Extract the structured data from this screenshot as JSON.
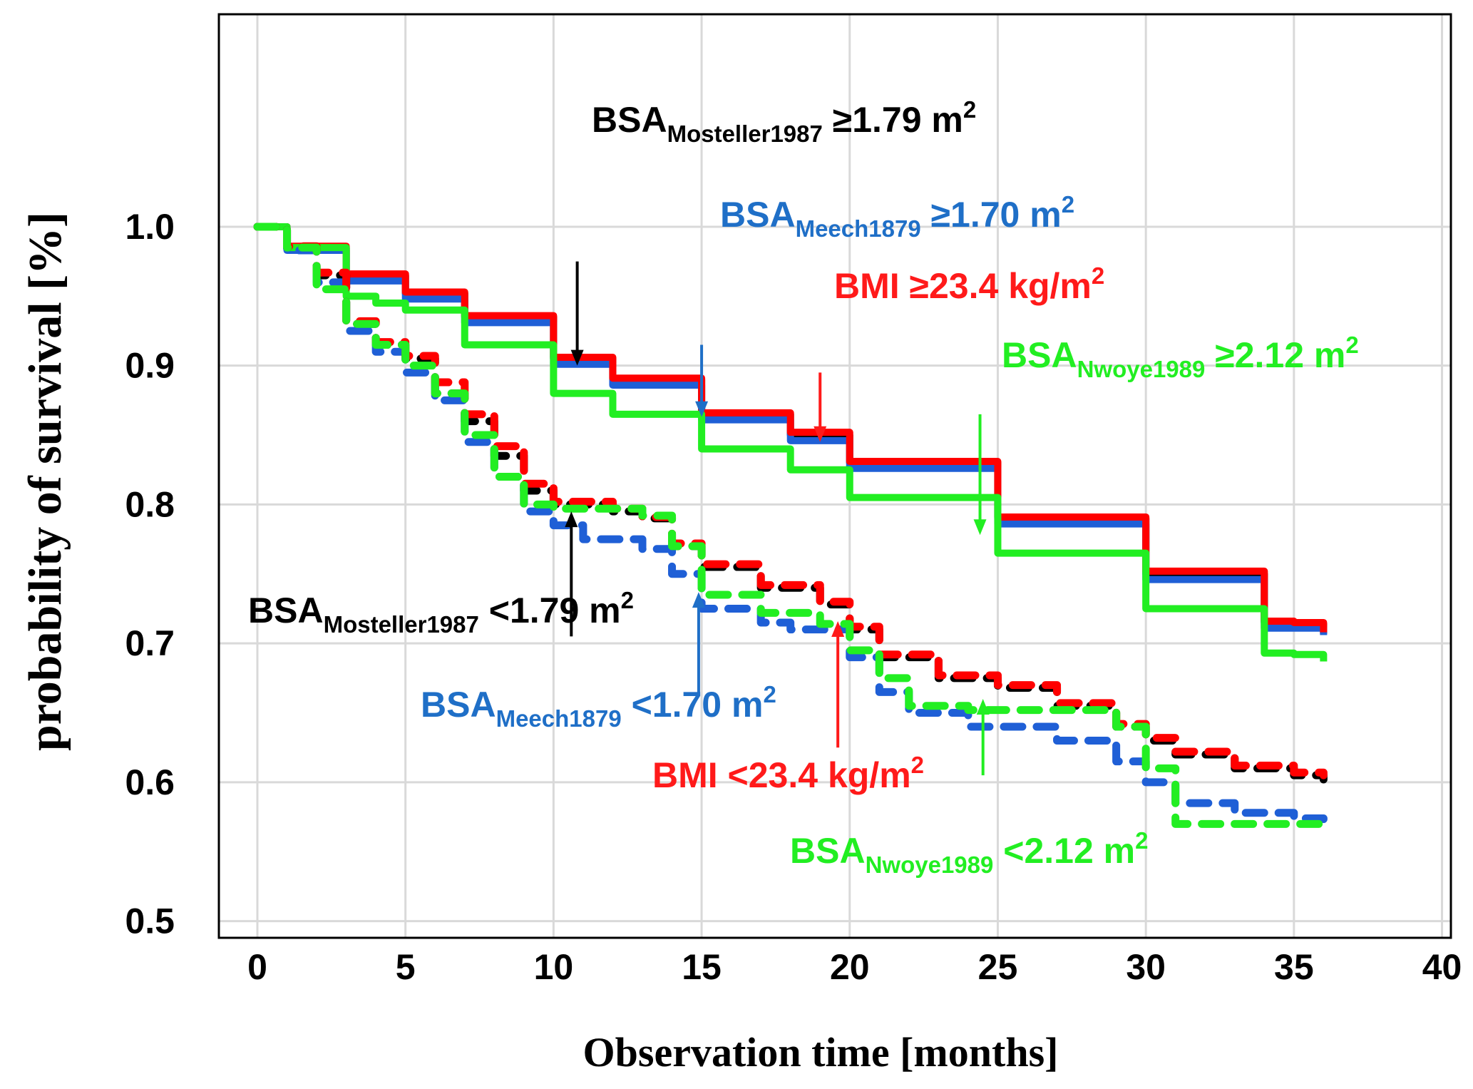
{
  "chart_data": {
    "type": "line",
    "title": "",
    "xlabel": "Observation time [months]",
    "ylabel": "probability of survival [%]",
    "xlim": [
      -1.3,
      40.3
    ],
    "ylim": [
      0.488,
      1.153
    ],
    "xticks": [
      0,
      5,
      10,
      15,
      20,
      25,
      30,
      35,
      40
    ],
    "yticks": [
      1.0,
      0.9,
      0.8,
      0.7,
      0.6,
      0.5
    ],
    "xtick_labels": [
      "0",
      "5",
      "10",
      "15",
      "20",
      "25",
      "30",
      "35",
      "40"
    ],
    "ytick_labels": [
      "1.0",
      "0.9",
      "0.8",
      "0.7",
      "0.6",
      "0.5"
    ],
    "grid": true,
    "series": [
      {
        "name": "BSA Mosteller1987 ≥1.79 m²",
        "color": "#000000",
        "style": "solid",
        "x": [
          0,
          1,
          3,
          5,
          7,
          10,
          12,
          15,
          18,
          20,
          25,
          30,
          34,
          35,
          36
        ],
        "y": [
          1.0,
          0.985,
          0.965,
          0.952,
          0.935,
          0.905,
          0.89,
          0.865,
          0.85,
          0.83,
          0.79,
          0.75,
          0.715,
          0.714,
          0.707
        ]
      },
      {
        "name": "BSA Meech1879 ≥1.70 m²",
        "color": "#1f5fd6",
        "style": "solid",
        "x": [
          0,
          1,
          3,
          5,
          7,
          10,
          12,
          15,
          18,
          20,
          25,
          30,
          34,
          35,
          36
        ],
        "y": [
          1.0,
          0.983,
          0.961,
          0.948,
          0.931,
          0.901,
          0.886,
          0.861,
          0.846,
          0.826,
          0.786,
          0.746,
          0.711,
          0.711,
          0.706
        ]
      },
      {
        "name": "BMI ≥23.4 kg/m²",
        "color": "#ff0000",
        "style": "solid",
        "x": [
          0,
          1,
          3,
          5,
          7,
          10,
          12,
          15,
          18,
          20,
          25,
          30,
          34,
          35,
          36
        ],
        "y": [
          1.0,
          0.986,
          0.966,
          0.953,
          0.936,
          0.906,
          0.891,
          0.866,
          0.852,
          0.831,
          0.791,
          0.752,
          0.716,
          0.715,
          0.708
        ]
      },
      {
        "name": "BSA Nwoye1989 ≥2.12 m²",
        "color": "#22ee22",
        "style": "solid",
        "x": [
          0,
          1,
          3,
          4,
          5,
          7,
          10,
          12,
          15,
          18,
          20,
          25,
          30,
          34,
          35,
          36
        ],
        "y": [
          1.0,
          0.985,
          0.95,
          0.945,
          0.94,
          0.915,
          0.88,
          0.865,
          0.84,
          0.825,
          0.805,
          0.765,
          0.725,
          0.693,
          0.692,
          0.687
        ]
      },
      {
        "name": "BSA Mosteller1987 <1.79 m²",
        "color": "#000000",
        "style": "dashed",
        "x": [
          0,
          1,
          2,
          3,
          4,
          5,
          6,
          7,
          8,
          9,
          10,
          12,
          13,
          14,
          15,
          17,
          19,
          20,
          21,
          23,
          25,
          27,
          29,
          30,
          31,
          33,
          35,
          36
        ],
        "y": [
          1.0,
          0.985,
          0.965,
          0.93,
          0.915,
          0.905,
          0.88,
          0.86,
          0.835,
          0.81,
          0.8,
          0.795,
          0.79,
          0.77,
          0.755,
          0.74,
          0.728,
          0.71,
          0.69,
          0.675,
          0.668,
          0.655,
          0.64,
          0.63,
          0.62,
          0.61,
          0.605,
          0.602
        ]
      },
      {
        "name": "BSA Meech1879 <1.70 m²",
        "color": "#1f5fd6",
        "style": "dashed",
        "x": [
          0,
          1,
          2,
          3,
          4,
          5,
          6,
          7,
          8,
          9,
          10,
          11,
          13,
          14,
          15,
          17,
          18,
          20,
          21,
          22,
          24,
          27,
          29,
          30,
          31,
          33,
          35,
          36
        ],
        "y": [
          1.0,
          0.983,
          0.96,
          0.925,
          0.91,
          0.895,
          0.875,
          0.845,
          0.82,
          0.795,
          0.785,
          0.775,
          0.768,
          0.75,
          0.725,
          0.715,
          0.71,
          0.69,
          0.665,
          0.65,
          0.64,
          0.63,
          0.615,
          0.6,
          0.585,
          0.578,
          0.574,
          0.572
        ]
      },
      {
        "name": "BMI <23.4 kg/m²",
        "color": "#ff0000",
        "style": "dashed",
        "x": [
          0,
          1,
          2,
          3,
          4,
          5,
          6,
          7,
          8,
          9,
          10,
          12,
          13,
          14,
          15,
          17,
          19,
          20,
          21,
          23,
          25,
          27,
          29,
          30,
          31,
          33,
          35,
          36
        ],
        "y": [
          1.0,
          0.986,
          0.967,
          0.932,
          0.917,
          0.907,
          0.888,
          0.865,
          0.842,
          0.815,
          0.802,
          0.797,
          0.791,
          0.772,
          0.757,
          0.742,
          0.73,
          0.712,
          0.692,
          0.677,
          0.67,
          0.657,
          0.642,
          0.632,
          0.622,
          0.612,
          0.607,
          0.605
        ]
      },
      {
        "name": "BSA Nwoye1989 <2.12 m²",
        "color": "#22ee22",
        "style": "dashed",
        "x": [
          0,
          1,
          2,
          3,
          4,
          5,
          6,
          7,
          8,
          9,
          10,
          11,
          13,
          14,
          15,
          17,
          19,
          20,
          21,
          22,
          24,
          27,
          29,
          30,
          31,
          33,
          35,
          36
        ],
        "y": [
          1.0,
          0.985,
          0.955,
          0.93,
          0.915,
          0.9,
          0.88,
          0.85,
          0.82,
          0.8,
          0.797,
          0.797,
          0.792,
          0.77,
          0.735,
          0.722,
          0.714,
          0.695,
          0.675,
          0.655,
          0.652,
          0.652,
          0.64,
          0.61,
          0.57,
          0.57,
          0.57,
          0.57
        ]
      }
    ],
    "annotations": [
      {
        "base": "BSA",
        "sub": "Mosteller1987",
        "rest": " ≥1.79 m",
        "sup": "2",
        "color": "#000000"
      },
      {
        "base": "BSA",
        "sub": "Meech1879",
        "rest": " ≥1.70 m",
        "sup": "2",
        "color": "#1f6fc7"
      },
      {
        "base": "BMI ≥23.4 kg/m",
        "sub": "",
        "rest": "",
        "sup": "2",
        "color": "#ff1a1a"
      },
      {
        "base": "BSA",
        "sub": "Nwoye1989",
        "rest": " ≥2.12 m",
        "sup": "2",
        "color": "#22ee22"
      },
      {
        "base": "BSA",
        "sub": "Mosteller1987",
        "rest": " <1.79 m",
        "sup": "2",
        "color": "#000000"
      },
      {
        "base": "BSA",
        "sub": "Meech1879",
        "rest": " <1.70 m",
        "sup": "2",
        "color": "#1f6fc7"
      },
      {
        "base": "BMI <23.4 kg/m",
        "sub": "",
        "rest": "",
        "sup": "2",
        "color": "#ff1a1a"
      },
      {
        "base": "BSA",
        "sub": "Nwoye1989",
        "rest": " <2.12 m",
        "sup": "2",
        "color": "#22ee22"
      }
    ]
  }
}
